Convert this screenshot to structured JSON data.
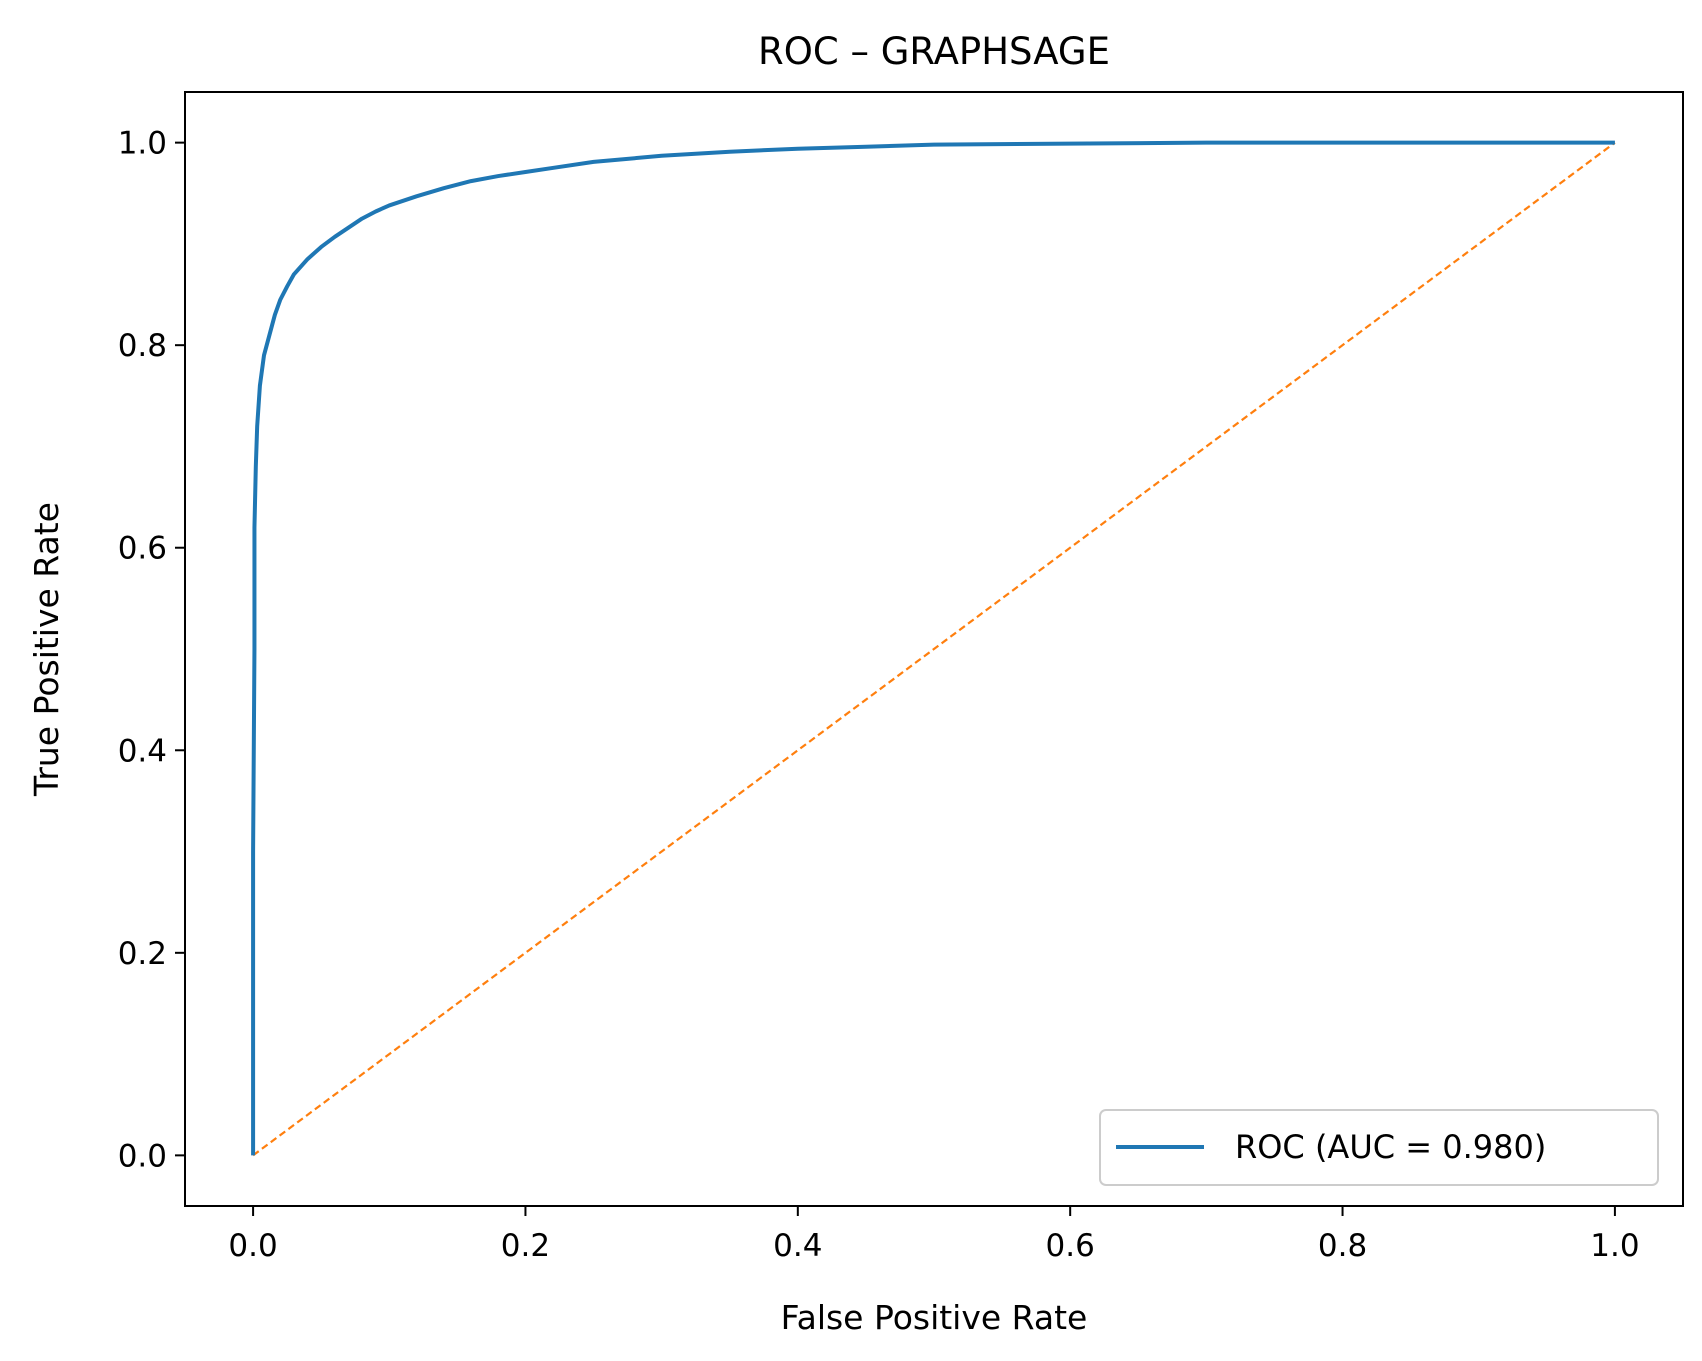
{
  "chart_data": {
    "type": "line",
    "title": "ROC – GRAPHSAGE",
    "xlabel": "False Positive Rate",
    "ylabel": "True Positive Rate",
    "xlim": [
      -0.05,
      1.05
    ],
    "ylim": [
      -0.05,
      1.05
    ],
    "x_ticks": [
      0.0,
      0.2,
      0.4,
      0.6,
      0.8,
      1.0
    ],
    "x_tick_labels": [
      "0.0",
      "0.2",
      "0.4",
      "0.6",
      "0.8",
      "1.0"
    ],
    "y_ticks": [
      0.0,
      0.2,
      0.4,
      0.6,
      0.8,
      1.0
    ],
    "y_tick_labels": [
      "0.0",
      "0.2",
      "0.4",
      "0.6",
      "0.8",
      "1.0"
    ],
    "grid": false,
    "legend_position": "lower-right",
    "series": [
      {
        "name": "ROC (AUC = 0.980)",
        "color": "#1f77b4",
        "style": "solid",
        "x": [
          0.0,
          0.0,
          0.001,
          0.001,
          0.002,
          0.003,
          0.005,
          0.008,
          0.012,
          0.016,
          0.02,
          0.025,
          0.03,
          0.04,
          0.05,
          0.06,
          0.07,
          0.08,
          0.09,
          0.1,
          0.12,
          0.14,
          0.16,
          0.18,
          0.2,
          0.22,
          0.25,
          0.3,
          0.35,
          0.4,
          0.45,
          0.5,
          0.6,
          0.7,
          0.8,
          0.9,
          1.0
        ],
        "y": [
          0.0,
          0.3,
          0.5,
          0.62,
          0.68,
          0.72,
          0.76,
          0.79,
          0.81,
          0.83,
          0.845,
          0.858,
          0.87,
          0.885,
          0.897,
          0.907,
          0.916,
          0.925,
          0.932,
          0.938,
          0.947,
          0.955,
          0.962,
          0.967,
          0.971,
          0.975,
          0.981,
          0.987,
          0.991,
          0.994,
          0.996,
          0.998,
          0.999,
          1.0,
          1.0,
          1.0,
          1.0
        ]
      },
      {
        "name": "",
        "color": "#ff7f0e",
        "style": "dashed",
        "x": [
          0.0,
          1.0
        ],
        "y": [
          0.0,
          1.0
        ]
      }
    ],
    "legend": [
      {
        "label": "ROC (AUC = 0.980)",
        "color": "#1f77b4"
      }
    ]
  }
}
